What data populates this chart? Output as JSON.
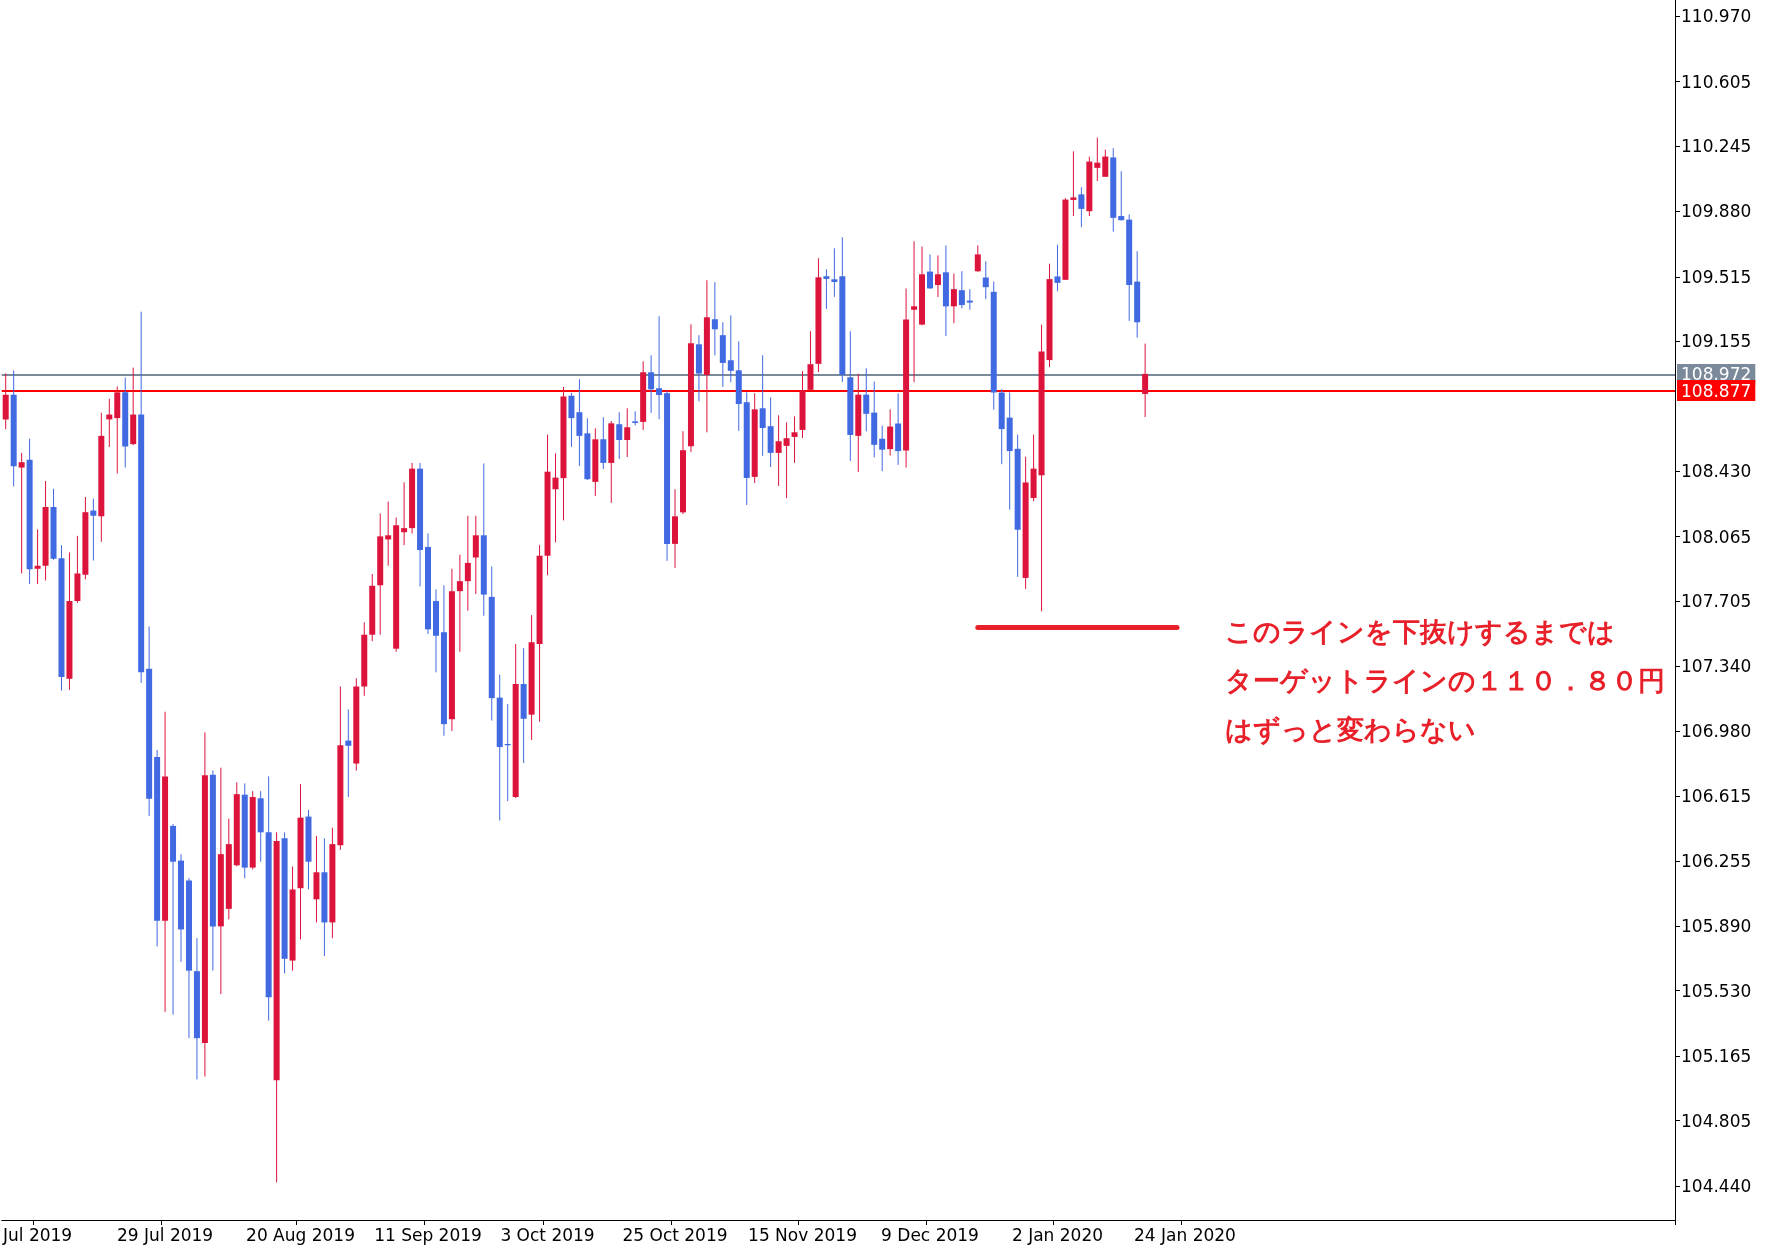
{
  "chart_data": {
    "type": "candlestick",
    "categories": [
      null,
      null,
      null,
      null,
      "Jul 2019",
      null,
      null,
      null,
      null,
      null,
      null,
      null,
      null,
      null,
      null,
      null,
      null,
      null,
      null,
      null,
      "29 Jul 2019",
      null,
      null,
      null,
      null,
      null,
      null,
      null,
      null,
      null,
      null,
      null,
      null,
      null,
      null,
      null,
      null,
      "20 Aug 2019",
      null,
      null,
      null,
      null,
      null,
      null,
      null,
      null,
      null,
      null,
      null,
      null,
      null,
      null,
      null,
      "11 Sep 2019",
      null,
      null,
      null,
      null,
      null,
      null,
      null,
      null,
      null,
      null,
      null,
      null,
      null,
      null,
      "3 Oct 2019",
      null,
      null,
      null,
      null,
      null,
      null,
      null,
      null,
      null,
      null,
      null,
      null,
      null,
      null,
      null,
      "25 Oct 2019",
      null,
      null,
      null,
      null,
      null,
      null,
      null,
      null,
      null,
      null,
      null,
      null,
      null,
      null,
      null,
      "15 Nov 2019",
      null,
      null,
      null,
      null,
      null,
      null,
      null,
      null,
      null,
      null,
      null,
      null,
      null,
      null,
      null,
      "9 Dec 2019",
      null,
      null,
      null,
      null,
      null,
      null,
      null,
      null,
      null,
      null,
      null,
      null,
      null,
      null,
      null,
      "2 Jan 2020",
      null,
      null,
      null,
      null,
      null,
      null,
      null,
      null,
      null,
      null,
      null,
      null,
      null,
      null,
      null,
      "24 Jan 2020",
      null,
      null,
      null,
      null,
      null,
      null,
      null,
      null,
      null,
      null,
      null,
      null,
      null,
      null,
      null,
      null,
      null,
      null,
      null,
      null,
      null,
      null,
      null,
      null,
      null,
      null,
      null,
      null,
      null,
      null,
      null,
      null,
      null,
      null,
      null,
      null,
      null,
      null,
      null,
      null,
      null,
      null,
      null,
      null,
      null,
      null,
      null,
      null,
      null,
      null,
      null,
      null,
      null,
      null,
      null,
      null,
      null,
      null,
      null,
      null,
      null
    ],
    "ohlc": [
      [
        108.719,
        108.976,
        108.664,
        108.857
      ],
      [
        108.857,
        108.992,
        108.345,
        108.457
      ],
      [
        108.45,
        108.532,
        107.859,
        108.48
      ],
      [
        108.493,
        108.611,
        107.8,
        107.882
      ],
      [
        107.885,
        108.105,
        107.8,
        107.902
      ],
      [
        107.902,
        108.375,
        107.82,
        108.23
      ],
      [
        108.23,
        108.332,
        107.935,
        107.941
      ],
      [
        107.944,
        108.017,
        107.205,
        107.281
      ],
      [
        107.271,
        107.977,
        107.209,
        107.705
      ],
      [
        107.705,
        108.069,
        107.695,
        107.859
      ],
      [
        107.852,
        108.286,
        107.826,
        108.201
      ],
      [
        108.21,
        108.276,
        107.931,
        108.181
      ],
      [
        108.178,
        108.756,
        108.036,
        108.627
      ],
      [
        108.719,
        108.834,
        108.565,
        108.746
      ],
      [
        108.726,
        108.903,
        108.417,
        108.87
      ],
      [
        108.87,
        108.953,
        108.45,
        108.568
      ],
      [
        108.581,
        109.008,
        108.575,
        108.746
      ],
      [
        108.746,
        109.32,
        107.248,
        107.307
      ],
      [
        107.327,
        107.563,
        106.506,
        106.601
      ],
      [
        106.834,
        106.874,
        105.777,
        105.921
      ],
      [
        105.921,
        107.087,
        105.412,
        106.726
      ],
      [
        106.45,
        106.46,
        105.396,
        106.25
      ],
      [
        106.256,
        106.292,
        105.691,
        105.872
      ],
      [
        106.145,
        106.158,
        105.265,
        105.642
      ],
      [
        105.639,
        105.823,
        105.035,
        105.265
      ],
      [
        105.238,
        106.972,
        105.051,
        106.733
      ],
      [
        106.736,
        106.759,
        105.642,
        105.889
      ],
      [
        105.889,
        106.775,
        105.511,
        106.292
      ],
      [
        105.987,
        106.49,
        105.928,
        106.348
      ],
      [
        106.23,
        106.693,
        106.224,
        106.627
      ],
      [
        106.624,
        106.687,
        106.158,
        106.217
      ],
      [
        106.217,
        106.644,
        106.207,
        106.611
      ],
      [
        106.604,
        106.644,
        106.25,
        106.414
      ],
      [
        106.414,
        106.726,
        105.363,
        105.494
      ],
      [
        105.03,
        106.414,
        104.46,
        106.365
      ],
      [
        106.381,
        106.414,
        105.626,
        105.708
      ],
      [
        105.698,
        106.223,
        105.642,
        106.095
      ],
      [
        106.102,
        106.683,
        105.816,
        106.496
      ],
      [
        106.502,
        106.539,
        106.095,
        106.25
      ],
      [
        106.04,
        106.394,
        105.911,
        106.191
      ],
      [
        106.191,
        106.381,
        105.724,
        105.911
      ],
      [
        105.911,
        106.44,
        105.823,
        106.348
      ],
      [
        106.342,
        107.228,
        106.316,
        106.9
      ],
      [
        106.926,
        107.1,
        106.611,
        106.897
      ],
      [
        106.798,
        107.274,
        106.759,
        107.228
      ],
      [
        107.228,
        107.586,
        107.176,
        107.517
      ],
      [
        107.517,
        107.856,
        107.481,
        107.79
      ],
      [
        107.793,
        108.194,
        107.517,
        108.066
      ],
      [
        108.049,
        108.26,
        107.902,
        108.072
      ],
      [
        107.439,
        108.171,
        107.422,
        108.128
      ],
      [
        108.089,
        108.368,
        108.017,
        108.112
      ],
      [
        108.112,
        108.476,
        108.082,
        108.444
      ],
      [
        108.444,
        108.476,
        107.787,
        107.99
      ],
      [
        108.007,
        108.082,
        107.521,
        107.547
      ],
      [
        107.705,
        107.77,
        107.307,
        107.511
      ],
      [
        107.531,
        107.793,
        106.953,
        107.018
      ],
      [
        107.045,
        107.885,
        106.979,
        107.76
      ],
      [
        107.76,
        107.964,
        107.422,
        107.816
      ],
      [
        107.816,
        108.181,
        107.652,
        107.918
      ],
      [
        107.948,
        108.181,
        107.744,
        108.072
      ],
      [
        108.072,
        108.473,
        107.623,
        107.741
      ],
      [
        107.728,
        107.898,
        107.038,
        107.163
      ],
      [
        107.166,
        107.294,
        106.48,
        106.89
      ],
      [
        106.907,
        107.13,
        106.588,
        106.9
      ],
      [
        106.611,
        107.465,
        106.605,
        107.242
      ],
      [
        107.242,
        107.442,
        106.801,
        107.048
      ],
      [
        107.071,
        107.626,
        106.93,
        107.475
      ],
      [
        107.465,
        108.017,
        107.031,
        107.958
      ],
      [
        107.958,
        108.634,
        107.849,
        108.427
      ],
      [
        108.329,
        108.529,
        108.033,
        108.394
      ],
      [
        108.391,
        108.9,
        108.155,
        108.847
      ],
      [
        108.851,
        108.867,
        108.565,
        108.726
      ],
      [
        108.759,
        108.943,
        108.459,
        108.627
      ],
      [
        108.641,
        108.725,
        108.381,
        108.385
      ],
      [
        108.37,
        108.669,
        108.292,
        108.608
      ],
      [
        108.608,
        108.731,
        108.442,
        108.476
      ],
      [
        108.476,
        108.71,
        108.253,
        108.697
      ],
      [
        108.692,
        108.759,
        108.498,
        108.604
      ],
      [
        108.604,
        108.781,
        108.509,
        108.675
      ],
      [
        108.708,
        108.764,
        108.686,
        108.699
      ],
      [
        108.705,
        109.043,
        108.66,
        108.982
      ],
      [
        108.982,
        109.077,
        108.755,
        108.887
      ],
      [
        108.893,
        109.295,
        108.72,
        108.855
      ],
      [
        108.865,
        108.878,
        107.929,
        108.024
      ],
      [
        108.024,
        108.329,
        107.89,
        108.178
      ],
      [
        108.2,
        108.653,
        108.191,
        108.547
      ],
      [
        108.569,
        109.25,
        108.537,
        109.144
      ],
      [
        109.138,
        109.189,
        108.82,
        108.975
      ],
      [
        108.967,
        109.496,
        108.647,
        109.289
      ],
      [
        109.278,
        109.485,
        109.077,
        109.222
      ],
      [
        109.189,
        109.261,
        108.9,
        109.034
      ],
      [
        109.049,
        109.3,
        108.926,
        108.99
      ],
      [
        108.993,
        109.155,
        108.655,
        108.805
      ],
      [
        108.815,
        108.87,
        108.241,
        108.392
      ],
      [
        108.398,
        108.865,
        108.364,
        108.775
      ],
      [
        108.781,
        109.077,
        108.515,
        108.671
      ],
      [
        108.681,
        108.842,
        108.453,
        108.532
      ],
      [
        108.532,
        108.742,
        108.347,
        108.597
      ],
      [
        108.571,
        108.703,
        108.28,
        108.614
      ],
      [
        108.621,
        108.736,
        108.476,
        108.647
      ],
      [
        108.66,
        108.988,
        108.615,
        108.882
      ],
      [
        108.884,
        109.211,
        108.88,
        109.027
      ],
      [
        109.029,
        109.619,
        108.984,
        109.512
      ],
      [
        109.518,
        109.557,
        109.336,
        109.503
      ],
      [
        109.501,
        109.674,
        109.403,
        109.486
      ],
      [
        109.518,
        109.736,
        108.928,
        108.967
      ],
      [
        108.954,
        109.211,
        108.487,
        108.632
      ],
      [
        108.627,
        108.973,
        108.425,
        108.857
      ],
      [
        108.857,
        109.004,
        108.652,
        108.75
      ],
      [
        108.757,
        108.93,
        108.507,
        108.577
      ],
      [
        108.611,
        108.684,
        108.43,
        108.55
      ],
      [
        108.553,
        108.775,
        108.517,
        108.679
      ],
      [
        108.696,
        108.863,
        108.465,
        108.542
      ],
      [
        108.546,
        109.45,
        108.45,
        109.277
      ],
      [
        109.331,
        109.713,
        108.927,
        109.35
      ],
      [
        109.248,
        109.684,
        109.244,
        109.529
      ],
      [
        109.544,
        109.64,
        109.448,
        109.45
      ],
      [
        109.469,
        109.634,
        109.402,
        109.529
      ],
      [
        109.54,
        109.69,
        109.184,
        109.35
      ],
      [
        109.35,
        109.533,
        109.256,
        109.446
      ],
      [
        109.44,
        109.546,
        109.338,
        109.357
      ],
      [
        109.382,
        109.446,
        109.331,
        109.371
      ],
      [
        109.546,
        109.69,
        109.542,
        109.64
      ],
      [
        109.511,
        109.602,
        109.39,
        109.457
      ],
      [
        109.431,
        109.488,
        108.773,
        108.869
      ],
      [
        108.869,
        108.888,
        108.469,
        108.665
      ],
      [
        108.729,
        108.869,
        108.215,
        108.542
      ],
      [
        108.555,
        108.634,
        107.84,
        108.103
      ],
      [
        107.834,
        108.511,
        107.773,
        108.367
      ],
      [
        108.28,
        108.634,
        108.263,
        108.444
      ],
      [
        108.407,
        109.248,
        107.648,
        109.098
      ],
      [
        109.05,
        109.588,
        109.011,
        109.502
      ],
      [
        109.517,
        109.694,
        109.434,
        109.481
      ],
      [
        109.498,
        109.954,
        109.498,
        109.946
      ],
      [
        109.944,
        110.215,
        109.854,
        109.958
      ],
      [
        109.975,
        110.015,
        109.792,
        109.894
      ],
      [
        109.881,
        110.185,
        109.854,
        110.158
      ],
      [
        110.123,
        110.292,
        110.05,
        110.152
      ],
      [
        110.073,
        110.225,
        110.073,
        110.186
      ],
      [
        110.181,
        110.233,
        109.767,
        109.844
      ],
      [
        109.854,
        110.104,
        109.829,
        109.831
      ],
      [
        109.834,
        109.863,
        109.269,
        109.469
      ],
      [
        109.488,
        109.658,
        109.175,
        109.261
      ],
      [
        108.861,
        109.142,
        108.732,
        108.973
      ],
      null,
      null,
      null,
      null,
      null,
      null,
      null,
      null,
      null,
      null,
      null,
      null,
      null,
      null,
      null,
      null,
      null,
      null,
      null,
      null,
      null,
      null,
      null,
      null,
      null,
      null,
      null,
      null,
      null,
      null,
      null,
      null,
      null,
      null,
      null,
      null,
      null,
      null,
      null,
      null,
      null,
      null,
      null,
      null,
      null,
      null,
      null,
      null,
      null,
      null,
      null,
      null,
      null,
      null,
      null,
      null,
      null,
      null,
      null,
      null,
      null,
      null,
      null,
      null,
      null,
      null
    ],
    "series": [
      {
        "type": "line",
        "color": "#e8202a",
        "values": [
          null,
          null,
          null,
          null,
          null,
          null,
          null,
          null,
          null,
          null,
          null,
          null,
          null,
          null,
          null,
          null,
          null,
          null,
          null,
          null,
          null,
          null,
          null,
          null,
          null,
          null,
          null,
          null,
          null,
          null,
          null,
          null,
          null,
          null,
          null,
          null,
          null,
          null,
          null,
          null,
          null,
          null,
          null,
          null,
          null,
          null,
          null,
          null,
          null,
          null,
          null,
          null,
          null,
          null,
          null,
          null,
          null,
          null,
          null,
          null,
          null,
          null,
          null,
          null,
          null,
          null,
          null,
          null,
          null,
          null,
          null,
          null,
          null,
          null,
          null,
          null,
          null,
          null,
          null,
          null,
          null,
          null,
          null,
          null,
          null,
          null,
          null,
          null,
          null,
          null,
          null,
          null,
          null,
          null,
          null,
          null,
          null,
          null,
          null,
          null,
          null,
          null,
          null,
          null,
          null,
          null,
          null,
          null,
          null,
          null,
          null,
          null,
          null,
          null,
          null,
          null,
          null,
          null,
          null,
          null,
          null,
          null,
          107.557,
          107.557,
          107.557,
          107.557,
          107.557,
          107.557,
          107.557,
          107.557,
          107.557,
          107.557,
          107.557,
          107.557,
          107.557,
          107.557,
          107.557,
          107.557,
          107.557,
          107.557,
          107.557,
          107.557,
          107.557,
          107.557,
          107.557,
          107.557,
          107.557,
          107.557,
          null,
          null,
          null,
          null,
          null,
          null,
          null,
          null,
          null,
          null,
          null,
          null,
          null,
          null,
          null,
          null,
          null,
          null,
          null,
          null,
          null,
          null,
          null,
          null,
          null,
          null,
          null,
          null,
          null,
          null,
          null,
          null,
          null,
          null,
          null,
          null,
          null,
          null,
          null,
          null,
          null,
          null,
          null,
          null,
          null,
          null,
          null,
          null,
          null,
          null,
          null,
          null,
          null,
          null,
          null,
          null,
          null,
          null,
          null,
          null,
          null,
          null
        ]
      }
    ],
    "ylim": [
      104.25,
      111.06
    ],
    "yticks": [
      {
        "value": 110.97,
        "label": "110.970"
      },
      {
        "value": 110.605,
        "label": "110.605"
      },
      {
        "value": 110.245,
        "label": "110.245"
      },
      {
        "value": 109.88,
        "label": "109.880"
      },
      {
        "value": 109.515,
        "label": "109.515"
      },
      {
        "value": 109.155,
        "label": "109.155"
      },
      {
        "value": 108.43,
        "label": "108.430"
      },
      {
        "value": 108.065,
        "label": "108.065"
      },
      {
        "value": 107.705,
        "label": "107.705"
      },
      {
        "value": 107.34,
        "label": "107.340"
      },
      {
        "value": 106.98,
        "label": "106.980"
      },
      {
        "value": 106.615,
        "label": "106.615"
      },
      {
        "value": 106.255,
        "label": "106.255"
      },
      {
        "value": 105.89,
        "label": "105.890"
      },
      {
        "value": 105.53,
        "label": "105.530"
      },
      {
        "value": 105.165,
        "label": "105.165"
      },
      {
        "value": 104.805,
        "label": "104.805"
      },
      {
        "value": 104.44,
        "label": "104.440"
      }
    ],
    "ref_lines": [
      {
        "axis": "y",
        "value": 108.972,
        "label": "108.972",
        "color": "#7a8a9a"
      },
      {
        "axis": "y",
        "value": 108.877,
        "label": "108.877",
        "color": "#ff0000"
      }
    ],
    "annotations": [
      "このラインを下抜けするまでは",
      "ターゲットラインの１１０．８０円",
      "はずっと変わらない"
    ]
  }
}
